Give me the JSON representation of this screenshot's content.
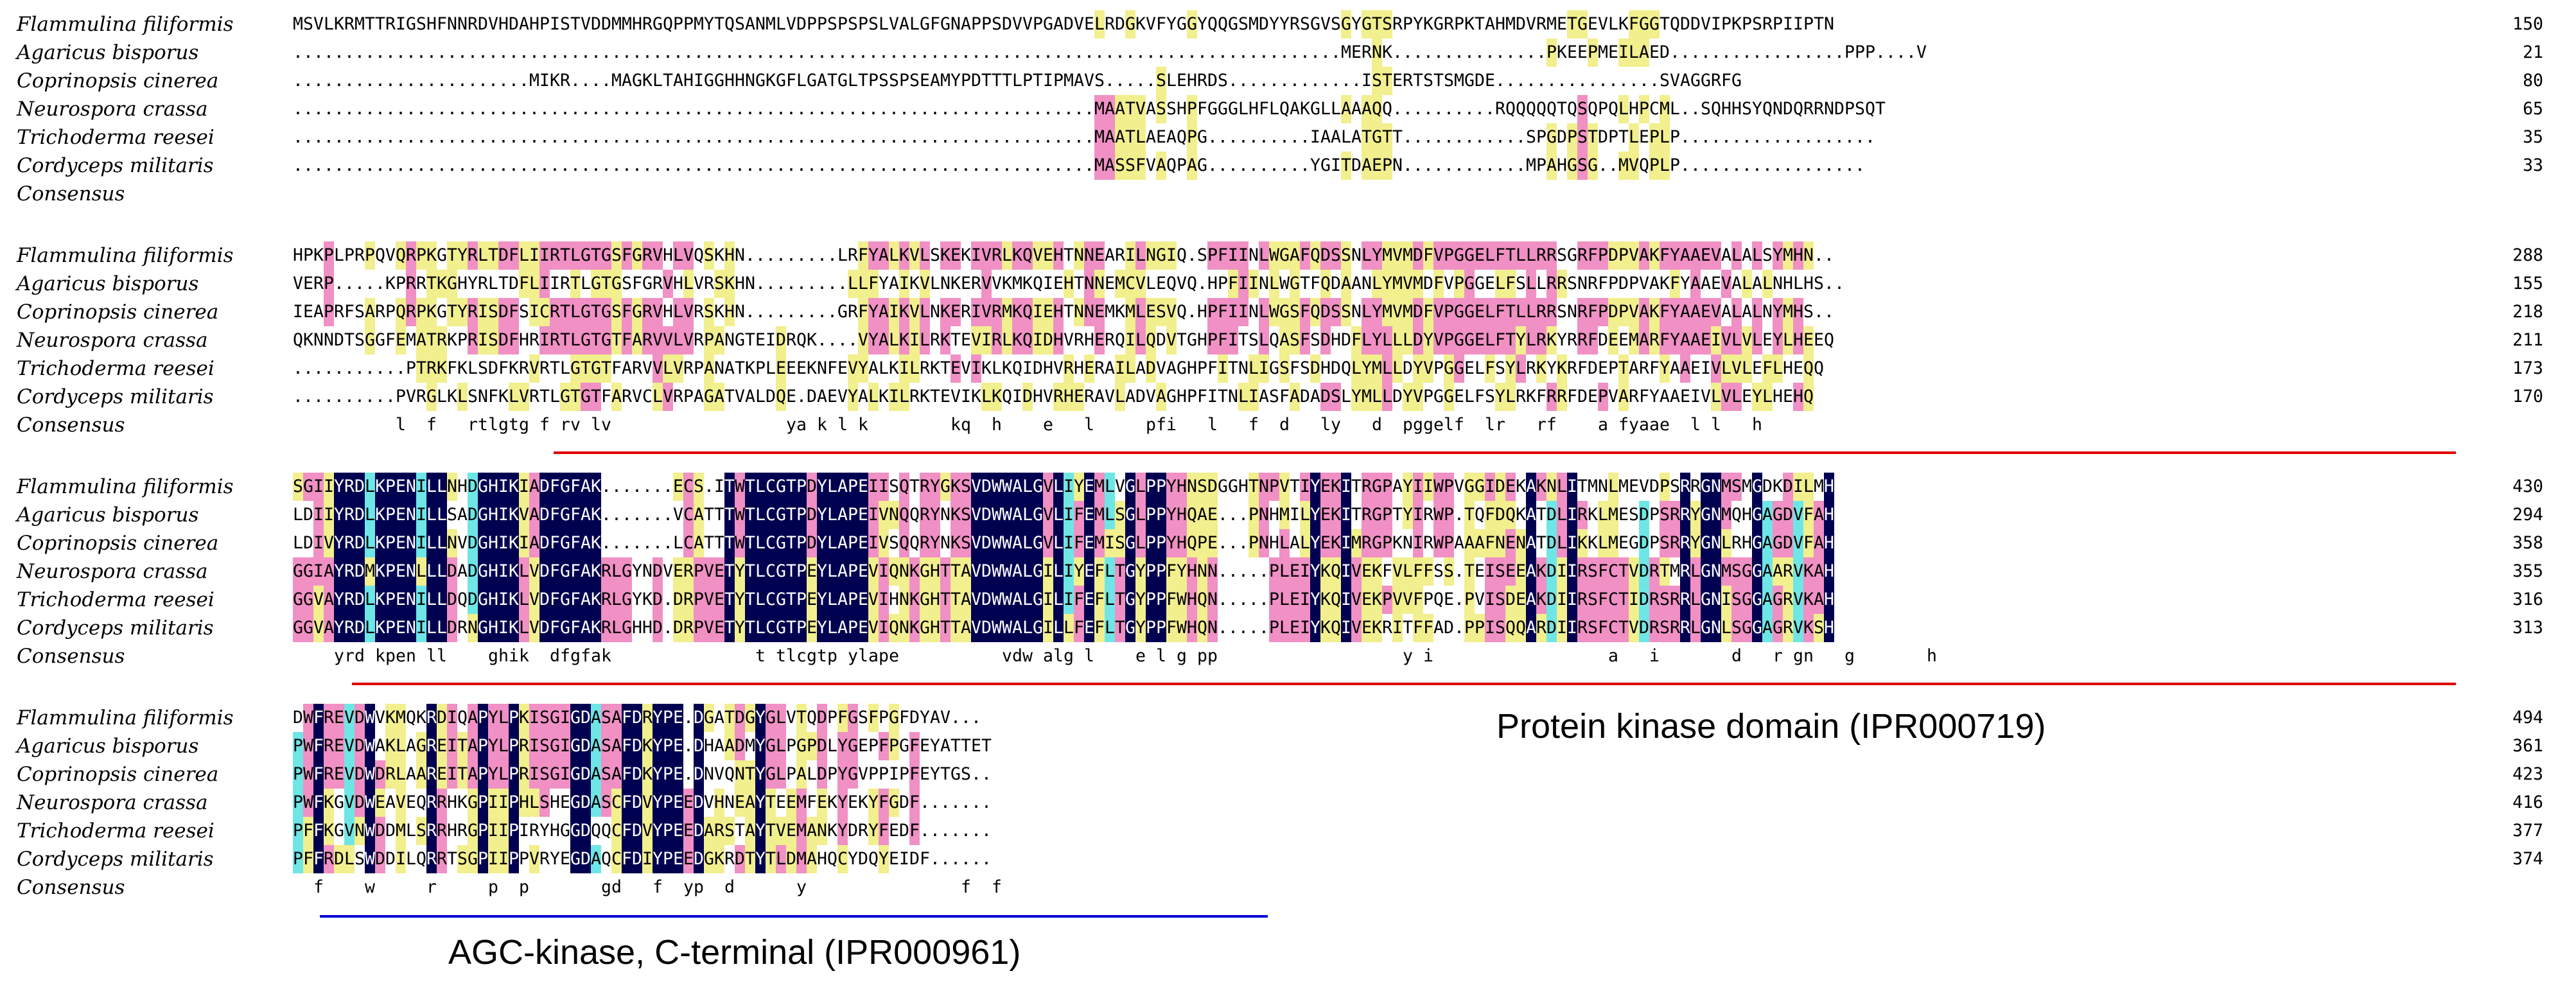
{
  "colors": {
    "identical": "#000050",
    "high_similarity": "#6ee6e6",
    "medium_similarity": "#f090c4",
    "low_similarity": "#f2ef8e",
    "kinase_domain_line": "#e00000",
    "agc_domain_line": "#0000d8"
  },
  "species": [
    "Flammulina filiformis",
    "Agaricus bisporus",
    "Coprinopsis cinerea",
    "Neurospora crassa",
    "Trichoderma reesei",
    "Cordyceps militaris"
  ],
  "consensus_label": "Consensus",
  "blocks": [
    {
      "rows": [
        {
          "seq": "MSVLKRMTTRIGSHFNNRDVHDAHPISTVDDMMHRGQPPMYTQSANMLVDPPSPSPSLVALGFGNAPPSDVVPGADVELRDGKVFYGGYQQGSMDYYRSGVSGYGTSRPYKGRPKTAHMDVRMETGEVLKFGGTQDDVIPKPSRPIIPTN",
          "end": "150"
        },
        {
          "seq": "......................................................................................................MERNK...............PKEEPMEILAED.................PPP....V",
          "end": "21"
        },
        {
          "seq": ".......................MIKR....MAGKLTAHIGGHHNGKGFLGATGLTPSSPSEAMYPDTTTLPTIPMAVS.....SLEHRDS.............ISTERTSTSMGDE................SVAGGRFG",
          "end": "80"
        },
        {
          "seq": "..............................................................................MAATVASSHPFGGGLHFLQAKGLLAAAQQ..........RQQQQQTQSQPQLHPCML..SQHHSYQNDQRRNDPSQT",
          "end": "65"
        },
        {
          "seq": "..............................................................................MAATLAEAQPG..........IAALATGTT............SPGDPSTDPTLEPLP...................",
          "end": "35"
        },
        {
          "seq": "..............................................................................MASSFVAQPAG..........YGITDAEPN............MPAHGSG..MVQPLP..................",
          "end": "33"
        }
      ],
      "consensus": ""
    },
    {
      "rows": [
        {
          "seq": "HPKPLPRPQVQRPKGTYRLTDFLIIRTLGTGSFGRVHLVQSKHN.........LRFYALKVLSKEKIVRLKQVEHTNNEARILNGIQ.SPFIINLWGAFQDSSNLYMVMDFVPGGELFTLLRRSGRFPDPVAKFYAAEVALALSYMHN..",
          "end": "288"
        },
        {
          "seq": "VERP.....KPRRTKGHYRLTDFLIIRTLGTGSFGRVHLVRSKHN.........LLFYAIKVLNKERVVKMKQIEHTNNEMCVLEQVQ.HPFIINLWGTFQDAANLYMVMDFVPGGELFSLLRRSNRFPDPVAKFYAAEVALALNHLHS..",
          "end": "155"
        },
        {
          "seq": "IEAPRFSARPQRPKGTYRISDFSICRTLGTGSFGRVHLVRSKHN.........GRFYAIKVLNKERIVRMKQIEHTNNEMKMLESVQ.HPFIINLWGSFQDSSNLYMVMDFVPGGELFTLLRRSNRFPDPVAKFYAAEVALALNYMHS..",
          "end": "218"
        },
        {
          "seq": "QKNNDTSGGFEMATRKPRISDFHRIRTLGTGTFARVVLVRPANGTEIDRQK....VYALKILRKTEVIRLKQIDHVRHERQILQDVTGHPFITSLQASFSDHDFLYLLLDYVPGGELFTYLRKYRRFDEEMARFYAAEIVLVLEYLHEEQ",
          "end": "211"
        },
        {
          "seq": "...........PTRKFKLSDFKRVRTLGTGTFARVVLVRPANATKPLEEEKNFEVYALKILRKTEVIKLKQIDHVRHERAILADVAGHPFITNLIGSFSDHDQLYMLLDYVPGGELFSYLRKYKRFDEPTARFYAAEIVLVLEFLHEQQ",
          "end": "173"
        },
        {
          "seq": "..........PVRGLKLSNFKLVRTLGTGTFARVCLVRPAGATVALDQE.DAEVYALKILRKTEVIKLKQIDHVRHERAVLADVAGHPFITNLIASFADADSLYMLLDYVPGGELFSYLRKFRRFDEPVARFYAAEIVLVLEYLHEHQ",
          "end": "170"
        }
      ],
      "consensus": "          l  f   rtlgtg f rv lv                 ya k l k        kq  h    e   l     pfi   l   f  d   ly   d  pggelf  lr   rf    a fyaae  l l   h   "
    },
    {
      "rows": [
        {
          "seq": "SGIIYRDLKPENILLNHDGHIKIADFGFAK.......ECS.ITWTLCGTPDYLAPEIISQTRYGKSVDWWALGVLIYEMLVGLPPYHNSDGGHTNPVTIYEKITRGPAYIIWPVGGIDEKAKNLITMNLMEVDPSRRGNMSMGDKDILMH",
          "end": "430"
        },
        {
          "seq": "LDIIYRDLKPENILLSADGHIKVADFGFAK.......VCATTTWTLCGTPDYLAPEIVNQQRYNKSVDWWALGVLIFEMLSGLPPYHQAE...PNHMILYEKITRGPTYIRWP.TQFDQKATDLIRKLMESDPSRRYGNMQHGAGDVFAH",
          "end": "294"
        },
        {
          "seq": "LDIVYRDLKPENILLNVDGHIKIADFGFAK.......LCATTTWTLCGTPDYLAPEIVSQQRYNKSVDWWALGVLIFEMISGLPPYHQPE...PNHLALYEKIMRGPKNIRWPAAAFNENATDLIKKLMEGDPSRRYGNLRHGAGDVFAH",
          "end": "358"
        },
        {
          "seq": "GGIAYRDMKPENLLLDADGHIKLVDFGFAKRLGYNDVERPVETYTLCGTPEYLAPEVIQNKGHTTAVDWWALGILIYEFLTGYPPFYHNN.....PLEIYKQIVEKFVLFFSS.TEISEEAKDIIRSFCTVDRTMRLGNMSGGAARVKAH",
          "end": "355"
        },
        {
          "seq": "GGVAYRDLKPENILLDQDGHIKLVDFGFAKRLGYKD.DRPVETYTLCGTPEYLAPEVIHNKGHTTAVDWWALGILIFEFLTGYPPFWHQN.....PLEIYKQIVEKPVVFPQE.PVISDEAKDIIRSFCTIDRSRRLGNISGGAGRVKAH",
          "end": "316"
        },
        {
          "seq": "GGVAYRDLKPENILLDRNGHIKLVDFGFAKRLGHHD.DRPVETYTLCGTPEYLAPEVIQNKGHTTAVDWWALGILLFEFLTGYPPFWHQN.....PLEIYKQIVEKRITFFAD.PPISQQARDIIRSFCTVDRSRRLGNLSGGAGRVKSH",
          "end": "313"
        }
      ],
      "consensus": "    yrd kpen ll    ghik  dfgfak              t tlcgtp ylape          vdw alg l    e l g pp                  y i                 a   i       d   r gn   g       h"
    },
    {
      "rows": [
        {
          "seq": "DWFREVDWVKMQKRDIQAPYLPKISGIGDASAFDRYPE.DGATDGYGLVTQDPFGSFPGFDYAV...",
          "end": "494"
        },
        {
          "seq": "PWFREVDWAKLAGREITAPYLPRISGIGDASAFDKYPE.DHAADMYGLPGPDLYGEPFPGFEYATTET",
          "end": "361"
        },
        {
          "seq": "PWFREVDWDRLAAREITAPYLPRISGIGDASAFDKYPE.DNVQNTYGLPALDPYGVPPIPFEYTGS..",
          "end": "423"
        },
        {
          "seq": "PWFKGVDWEAVEQRRHKGPIIPHLSHEGDASCFDVYPEEDVHNEAYTEEMFEKYEKYFGDF.......",
          "end": "416"
        },
        {
          "seq": "PFFKGVNWDDMLSRRHRGPIIPIRYHGGDQQCFDVYPEEDARSTAYTVEMANKYDRYFEDF.......",
          "end": "377"
        },
        {
          "seq": "PFFRDLSWDDILQRRTSGPIIPPVRYEGDAQCFDIYPEEDGKRDTYTLDMAHQCYDQYEIDF......",
          "end": "374"
        }
      ],
      "consensus": "  f    w     r     p  p       gd   f  yp  d      y               f  f  "
    }
  ],
  "domains": [
    {
      "label": "Protein kinase domain (IPR000719)"
    },
    {
      "label": "AGC-kinase, C-terminal (IPR000961)"
    }
  ]
}
